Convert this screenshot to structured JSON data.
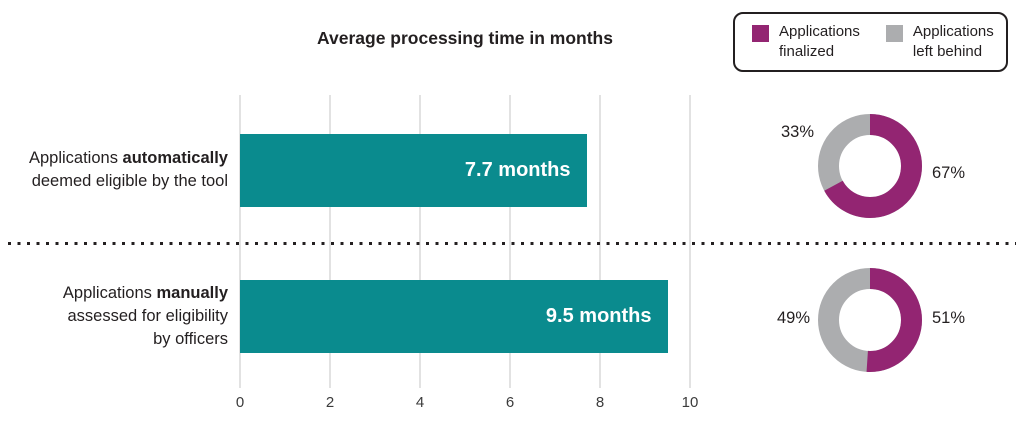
{
  "title": "Average processing time in months",
  "colors": {
    "bar_teal": "#0A8B8E",
    "finalized_purple": "#932572",
    "left_behind_gray": "#ACADAF",
    "text_dark": "#231F20",
    "gridline": "#E2E2E2"
  },
  "legend": {
    "finalized": "Applications\nfinalized",
    "left_behind": "Applications\nleft behind"
  },
  "axis": {
    "ticks": [
      "0",
      "2",
      "4",
      "6",
      "8",
      "10"
    ]
  },
  "rows": [
    {
      "label": {
        "line1_pre": "Applications ",
        "line1_bold": "automatically",
        "line2": "deemed eligible by the tool"
      },
      "value_label": "7.7 months",
      "donut_left_label": "33%",
      "donut_right_label": "67%"
    },
    {
      "label": {
        "line1_pre": "Applications ",
        "line1_bold": "manually",
        "line2": "assessed for eligibility",
        "line3": "by officers"
      },
      "value_label": "9.5 months",
      "donut_left_label": "49%",
      "donut_right_label": "51%"
    }
  ],
  "donuts": [
    {
      "finalized_pct": 67,
      "left_behind_pct": 33
    },
    {
      "finalized_pct": 51,
      "left_behind_pct": 49
    }
  ],
  "chart_data": [
    {
      "type": "bar",
      "orientation": "horizontal",
      "title": "Average processing time in months",
      "categories": [
        "Applications automatically deemed eligible by the tool",
        "Applications manually assessed for eligibility by officers"
      ],
      "values": [
        7.7,
        9.5
      ],
      "bar_labels": [
        "7.7 months",
        "9.5 months"
      ],
      "xlim": [
        0,
        10
      ],
      "xticks": [
        0,
        2,
        4,
        6,
        8,
        10
      ],
      "grid": true,
      "bar_color": "#0A8B8E"
    },
    {
      "type": "pie",
      "subtype": "donut",
      "category": "Applications automatically deemed eligible by the tool",
      "labels": [
        "Applications finalized",
        "Applications left behind"
      ],
      "values": [
        67,
        33
      ],
      "colors": [
        "#932572",
        "#ACADAF"
      ],
      "legend_position": "top-right"
    },
    {
      "type": "pie",
      "subtype": "donut",
      "category": "Applications manually assessed for eligibility by officers",
      "labels": [
        "Applications finalized",
        "Applications left behind"
      ],
      "values": [
        51,
        49
      ],
      "colors": [
        "#932572",
        "#ACADAF"
      ],
      "legend_position": "top-right"
    }
  ]
}
